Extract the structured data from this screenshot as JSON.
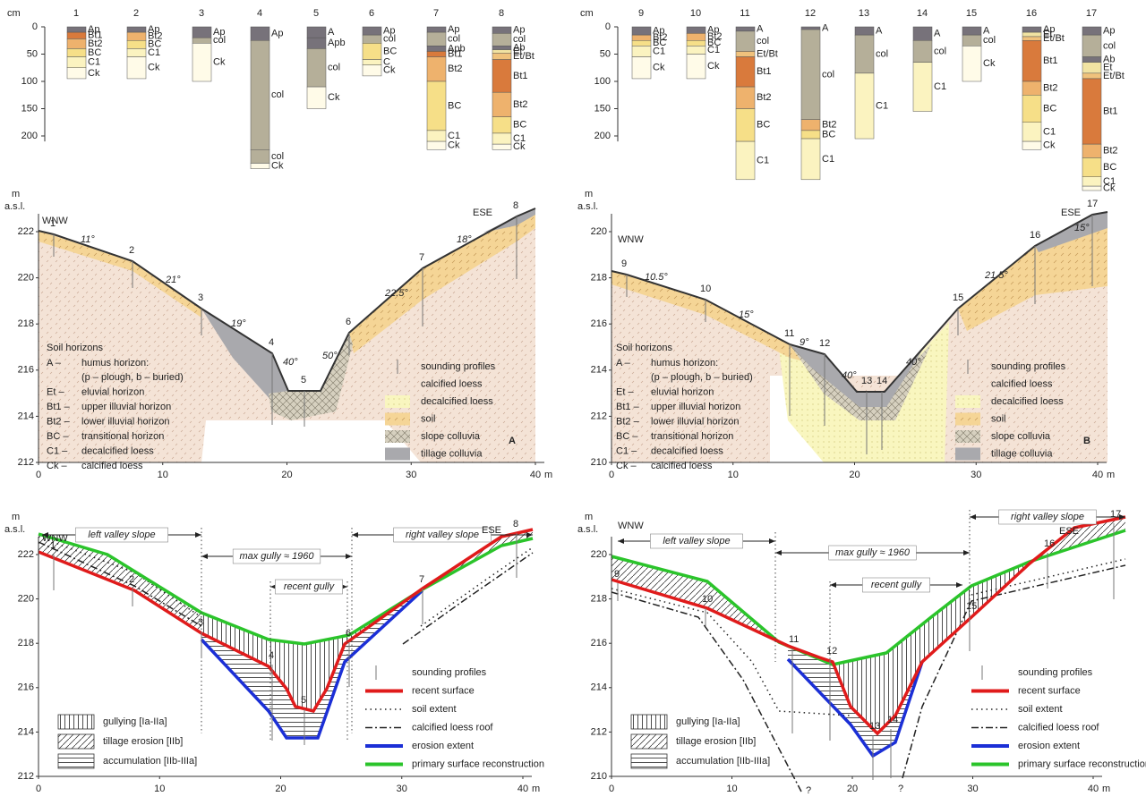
{
  "profiles_left": {
    "unit": "cm",
    "depth_ticks": [
      0,
      50,
      100,
      150,
      200
    ],
    "columns": [
      {
        "id": "1",
        "horizons": [
          "Ap",
          "Bt1",
          "Bt2",
          "BC",
          "C1",
          "Ck"
        ]
      },
      {
        "id": "2",
        "horizons": [
          "Ap",
          "Bt2",
          "BC",
          "C1",
          "Ck"
        ]
      },
      {
        "id": "3",
        "horizons": [
          "Ap",
          "col",
          "Ck"
        ]
      },
      {
        "id": "4",
        "horizons": [
          "Ap",
          "col",
          "col",
          "Ck"
        ]
      },
      {
        "id": "5",
        "horizons": [
          "A",
          "Apb",
          "col",
          "Ck"
        ]
      },
      {
        "id": "6",
        "horizons": [
          "Ap",
          "col",
          "BC",
          "C",
          "Ck"
        ]
      },
      {
        "id": "7",
        "horizons": [
          "Ap",
          "col",
          "Apb",
          "Bt1",
          "Bt2",
          "BC",
          "C1",
          "Ck"
        ]
      },
      {
        "id": "8",
        "horizons": [
          "Ap",
          "col",
          "Ab",
          "Et",
          "Et/Bt",
          "Bt1",
          "Bt2",
          "BC",
          "C1",
          "Ck"
        ]
      }
    ]
  },
  "profiles_right": {
    "unit": "cm",
    "depth_ticks": [
      0,
      50,
      100,
      150,
      200
    ],
    "columns": [
      {
        "id": "9",
        "horizons": [
          "Ap",
          "Bt2",
          "BC",
          "C1",
          "Ck"
        ]
      },
      {
        "id": "10",
        "horizons": [
          "Ap",
          "Bt2",
          "BC",
          "C1",
          "Ck"
        ]
      },
      {
        "id": "11",
        "horizons": [
          "A",
          "col",
          "Et/Bt",
          "Bt1",
          "Bt2",
          "BC",
          "C1"
        ]
      },
      {
        "id": "12",
        "horizons": [
          "A",
          "col",
          "Bt2",
          "BC",
          "C1"
        ]
      },
      {
        "id": "13",
        "horizons": [
          "A",
          "col",
          "C1"
        ]
      },
      {
        "id": "14",
        "horizons": [
          "A",
          "col",
          "C1"
        ]
      },
      {
        "id": "15",
        "horizons": [
          "A",
          "col",
          "Ck"
        ]
      },
      {
        "id": "16",
        "horizons": [
          "Ap",
          "Et",
          "Et/Bt",
          "Bt1",
          "Bt2",
          "BC",
          "C1",
          "Ck"
        ]
      },
      {
        "id": "17",
        "horizons": [
          "Ap",
          "col",
          "Ab",
          "Et",
          "Et/Bt",
          "Bt1",
          "Bt2",
          "BC",
          "C1",
          "Ck"
        ]
      }
    ]
  },
  "section_A": {
    "y_label": [
      "m",
      "a.s.l."
    ],
    "yticks": [
      212,
      214,
      216,
      218,
      220,
      222
    ],
    "xticks": [
      0,
      10,
      20,
      30,
      40
    ],
    "x_unit": "m",
    "direction_left": "WNW",
    "direction_right": "ESE",
    "profiles": [
      "1",
      "2",
      "3",
      "4",
      "5",
      "6",
      "7",
      "8"
    ],
    "slopes": [
      "11°",
      "21°",
      "19°",
      "40°",
      "50°",
      "22.5°",
      "18°"
    ],
    "horizon_legend": {
      "title": "Soil horizons",
      "items": [
        {
          "key": "A –",
          "text": "humus horizon:",
          "note": "(p – plough, b – buried)"
        },
        {
          "key": "Et –",
          "text": "eluvial horizon"
        },
        {
          "key": "Bt1 –",
          "text": "upper illuvial horizon"
        },
        {
          "key": "Bt2 –",
          "text": "lower illuvial horizon"
        },
        {
          "key": "BC –",
          "text": "transitional horizon"
        },
        {
          "key": "C1 –",
          "text": "decalcified loess"
        },
        {
          "key": "Ck –",
          "text": "calcified loess"
        }
      ]
    },
    "legend": [
      "sounding profiles",
      "calcified loess",
      "decalcified loess",
      "soil",
      "slope colluvia",
      "tillage colluvia"
    ],
    "panel_label": "A"
  },
  "section_B": {
    "y_label": [
      "m",
      "a.s.l."
    ],
    "yticks": [
      210,
      212,
      214,
      216,
      218,
      220
    ],
    "xticks": [
      0,
      10,
      20,
      30,
      40
    ],
    "x_unit": "m",
    "direction_left": "WNW",
    "direction_right": "ESE",
    "profiles": [
      "9",
      "10",
      "11",
      "12",
      "13",
      "14",
      "15",
      "16",
      "17"
    ],
    "slopes": [
      "10.5°",
      "15°",
      "9°",
      "40°",
      "40°",
      "21.5°",
      "15°"
    ],
    "horizon_legend": {
      "title": "Soil horizons",
      "items": [
        {
          "key": "A –",
          "text": "humus horizon:",
          "note": "(p – plough, b – buried)"
        },
        {
          "key": "Et –",
          "text": "eluvial horizon"
        },
        {
          "key": "Bt1 –",
          "text": "upper illuvial horizon"
        },
        {
          "key": "Bt2 –",
          "text": "lower illuvial horizon"
        },
        {
          "key": "BC –",
          "text": "transitional horizon"
        },
        {
          "key": "C1 –",
          "text": "decalcified loess"
        },
        {
          "key": "Ck –",
          "text": "calcified loess"
        }
      ]
    },
    "legend": [
      "sounding profiles",
      "calcified loess",
      "decalcified loess",
      "soil",
      "slope colluvia",
      "tillage colluvia"
    ],
    "panel_label": "B"
  },
  "erosion_A": {
    "y_label": [
      "m",
      "a.s.l."
    ],
    "yticks": [
      212,
      214,
      216,
      218,
      220,
      222
    ],
    "xticks": [
      0,
      10,
      20,
      30,
      40
    ],
    "x_unit": "m",
    "direction_left": "WNW",
    "direction_right": "ESE",
    "profiles": [
      "1",
      "2",
      "3",
      "4",
      "5",
      "6",
      "7",
      "8"
    ],
    "spans": [
      "left valley slope",
      "max gully ≈ 1960",
      "recent gully",
      "right valley slope"
    ],
    "hatch_legend": [
      "gullying [Ia-IIa]",
      "tillage erosion [IIb]",
      "accumulation [IIb-IIIa]"
    ],
    "line_legend": [
      "sounding profiles",
      "recent surface",
      "soil extent",
      "calcified loess roof",
      "erosion extent",
      "primary surface reconstruction"
    ]
  },
  "erosion_B": {
    "y_label": [
      "m",
      "a.s.l."
    ],
    "yticks": [
      210,
      212,
      214,
      216,
      218,
      220
    ],
    "xticks": [
      0,
      10,
      20,
      30,
      40
    ],
    "x_unit": "m",
    "direction_left": "WNW",
    "direction_right": "ESE",
    "profiles": [
      "9",
      "10",
      "11",
      "12",
      "13",
      "14",
      "15",
      "16",
      "17"
    ],
    "spans": [
      "left valley slope",
      "max gully ≈ 1960",
      "recent gully",
      "right valley slope"
    ],
    "hatch_legend": [
      "gullying [Ia-IIa]",
      "tillage erosion [IIb]",
      "accumulation [IIb-IIIa]"
    ],
    "line_legend": [
      "sounding profiles",
      "recent surface",
      "soil extent",
      "calcified loess roof",
      "erosion extent",
      "primary surface reconstruction"
    ],
    "question_marks": [
      "?",
      "?"
    ]
  }
}
